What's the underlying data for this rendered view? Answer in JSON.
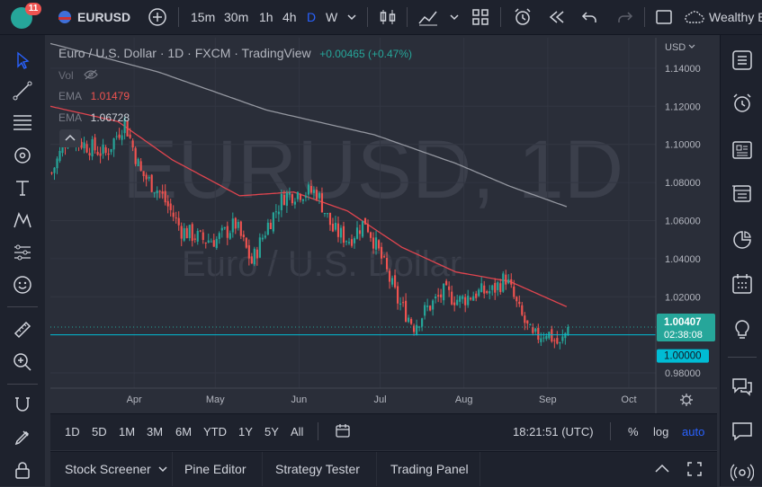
{
  "topbar": {
    "notif_count": "11",
    "symbol": "EURUSD",
    "intervals": [
      "15m",
      "30m",
      "1h",
      "4h",
      "D",
      "W"
    ],
    "active_interval": "D",
    "workspace": "Wealthy E"
  },
  "legend": {
    "title": "Euro / U.S. Dollar · 1D · FXCM · TradingView",
    "change": "+0.00465 (+0.47%)",
    "vol_label": "Vol",
    "ema1_label": "EMA",
    "ema1_value": "1.01479",
    "ema2_label": "EMA",
    "ema2_value": "1.06728"
  },
  "watermark": {
    "symbol": "EURUSD, 1D",
    "name": "Euro / U.S. Dollar"
  },
  "price_axis": {
    "currency": "USD",
    "current_price": "1.00407",
    "countdown": "02:38:08",
    "line_price": "1.00000"
  },
  "chart_data": {
    "type": "candlestick",
    "y_ticks": [
      0.98,
      1.0,
      1.02,
      1.04,
      1.06,
      1.08,
      1.1,
      1.12,
      1.14
    ],
    "y_tick_labels": [
      "0.98000",
      "1.00000",
      "1.02000",
      "1.04000",
      "1.06000",
      "1.08000",
      "1.10000",
      "1.12000",
      "1.14000"
    ],
    "ylim": [
      0.972,
      1.156
    ],
    "x_tick_labels": [
      "Apr",
      "May",
      "Jun",
      "Jul",
      "Aug",
      "Sep",
      "Oct"
    ],
    "x_tick_days": [
      31,
      61,
      92,
      122,
      153,
      184,
      214
    ],
    "xlim": [
      0,
      224
    ],
    "bars_start_day": 0,
    "bars_end_day": 191,
    "close_anchors": [
      [
        0,
        1.085
      ],
      [
        6,
        1.105
      ],
      [
        12,
        1.1
      ],
      [
        20,
        1.095
      ],
      [
        27,
        1.112
      ],
      [
        33,
        1.085
      ],
      [
        40,
        1.075
      ],
      [
        48,
        1.055
      ],
      [
        56,
        1.05
      ],
      [
        61,
        1.05
      ],
      [
        68,
        1.058
      ],
      [
        74,
        1.038
      ],
      [
        80,
        1.058
      ],
      [
        86,
        1.073
      ],
      [
        92,
        1.075
      ],
      [
        98,
        1.075
      ],
      [
        104,
        1.055
      ],
      [
        110,
        1.05
      ],
      [
        116,
        1.06
      ],
      [
        122,
        1.04
      ],
      [
        128,
        1.018
      ],
      [
        134,
        1.005
      ],
      [
        139,
        1.014
      ],
      [
        145,
        1.022
      ],
      [
        151,
        1.018
      ],
      [
        157,
        1.022
      ],
      [
        163,
        1.023
      ],
      [
        168,
        1.03
      ],
      [
        173,
        1.012
      ],
      [
        178,
        0.998
      ],
      [
        183,
        1.002
      ],
      [
        188,
        0.994
      ],
      [
        191,
        1.0041
      ]
    ],
    "ema1_anchors": [
      [
        0,
        1.12
      ],
      [
        25,
        1.112
      ],
      [
        45,
        1.092
      ],
      [
        70,
        1.073
      ],
      [
        90,
        1.075
      ],
      [
        110,
        1.065
      ],
      [
        130,
        1.046
      ],
      [
        150,
        1.033
      ],
      [
        170,
        1.028
      ],
      [
        191,
        1.0148
      ]
    ],
    "ema2_anchors": [
      [
        0,
        1.153
      ],
      [
        40,
        1.138
      ],
      [
        80,
        1.118
      ],
      [
        120,
        1.105
      ],
      [
        150,
        1.09
      ],
      [
        170,
        1.078
      ],
      [
        191,
        1.0673
      ]
    ],
    "current_price": 1.00407,
    "horizontal_line": 1.0
  },
  "range_bar": {
    "ranges": [
      "1D",
      "5D",
      "1M",
      "3M",
      "6M",
      "YTD",
      "1Y",
      "5Y",
      "All"
    ],
    "time": "18:21:51 (UTC)",
    "percent": "%",
    "log": "log",
    "auto": "auto"
  },
  "bottom_bar": {
    "tabs": [
      "Stock Screener",
      "Pine Editor",
      "Strategy Tester",
      "Trading Panel"
    ]
  },
  "colors": {
    "up": "#26a69a",
    "down": "#ef5350",
    "ema1": "#e0454f",
    "ema2": "#9598a1",
    "price_tag": "#26a69a",
    "line_tag": "#00bcd4",
    "accent": "#2962ff"
  }
}
